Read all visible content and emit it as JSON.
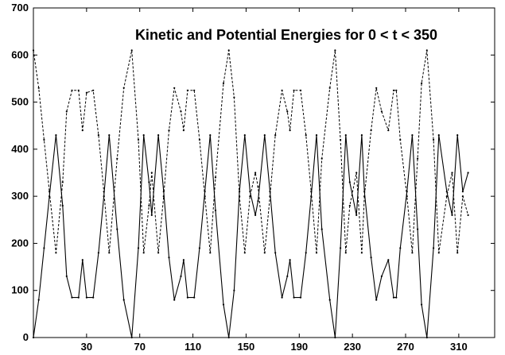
{
  "chart_data": {
    "type": "line",
    "title": "Kinetic and Potential Energies for 0 < t < 350",
    "xlabel": "",
    "ylabel": "",
    "xlim": [
      -10,
      337
    ],
    "ylim": [
      0,
      700
    ],
    "xticks": [
      30,
      70,
      110,
      150,
      190,
      230,
      270,
      310
    ],
    "yticks": [
      0,
      100,
      200,
      300,
      400,
      500,
      600,
      700
    ],
    "grid": false,
    "legend": "none",
    "series": [
      {
        "style": "dashed",
        "x": [
          -10,
          -6,
          -2,
          2,
          7,
          12,
          15,
          19,
          24,
          27,
          30,
          35,
          39,
          43,
          47,
          53,
          58,
          64,
          69,
          73,
          77,
          79,
          84,
          88,
          92,
          96,
          101,
          103,
          106,
          111,
          115,
          119,
          123,
          127,
          133,
          137,
          141,
          145,
          149,
          153,
          157,
          159,
          164,
          168,
          172,
          177,
          181,
          183,
          186,
          191,
          195,
          199,
          203,
          207,
          213,
          217,
          221,
          225,
          228,
          233,
          237,
          239,
          244,
          248,
          252,
          257,
          261,
          263,
          266,
          271,
          275,
          279,
          282,
          286,
          291,
          295,
          301,
          305,
          309,
          313,
          317
        ],
        "y": [
          610,
          530,
          420,
          310,
          180,
          330,
          480,
          525,
          525,
          440,
          520,
          525,
          430,
          310,
          180,
          380,
          530,
          610,
          420,
          180,
          280,
          350,
          180,
          300,
          440,
          530,
          480,
          440,
          525,
          525,
          420,
          300,
          180,
          340,
          540,
          610,
          510,
          300,
          180,
          300,
          350,
          320,
          180,
          300,
          430,
          525,
          480,
          440,
          525,
          525,
          430,
          310,
          180,
          380,
          530,
          610,
          420,
          180,
          280,
          350,
          180,
          300,
          440,
          530,
          480,
          440,
          525,
          525,
          420,
          300,
          180,
          380,
          540,
          610,
          420,
          180,
          300,
          350,
          180,
          300,
          260
        ]
      },
      {
        "style": "solid",
        "x": [
          -10,
          -6,
          -2,
          2,
          7,
          12,
          15,
          19,
          24,
          27,
          30,
          35,
          39,
          43,
          47,
          53,
          58,
          64,
          69,
          73,
          77,
          79,
          84,
          88,
          92,
          96,
          101,
          103,
          106,
          111,
          115,
          119,
          123,
          127,
          133,
          137,
          141,
          145,
          149,
          153,
          157,
          159,
          164,
          168,
          172,
          177,
          181,
          183,
          186,
          191,
          195,
          199,
          203,
          207,
          213,
          217,
          221,
          225,
          228,
          233,
          237,
          239,
          244,
          248,
          252,
          257,
          261,
          263,
          266,
          271,
          275,
          279,
          282,
          286,
          291,
          295,
          301,
          305,
          309,
          313,
          317
        ],
        "y": [
          0,
          80,
          190,
          300,
          430,
          280,
          130,
          85,
          85,
          165,
          85,
          85,
          180,
          300,
          430,
          230,
          80,
          0,
          190,
          430,
          330,
          260,
          430,
          310,
          170,
          80,
          130,
          165,
          85,
          85,
          190,
          310,
          430,
          270,
          70,
          0,
          100,
          310,
          430,
          310,
          260,
          290,
          430,
          310,
          180,
          85,
          130,
          165,
          85,
          85,
          180,
          300,
          430,
          230,
          80,
          0,
          190,
          430,
          330,
          260,
          430,
          310,
          170,
          80,
          130,
          165,
          85,
          85,
          190,
          310,
          430,
          230,
          70,
          0,
          190,
          430,
          310,
          260,
          430,
          310,
          350
        ]
      }
    ]
  }
}
